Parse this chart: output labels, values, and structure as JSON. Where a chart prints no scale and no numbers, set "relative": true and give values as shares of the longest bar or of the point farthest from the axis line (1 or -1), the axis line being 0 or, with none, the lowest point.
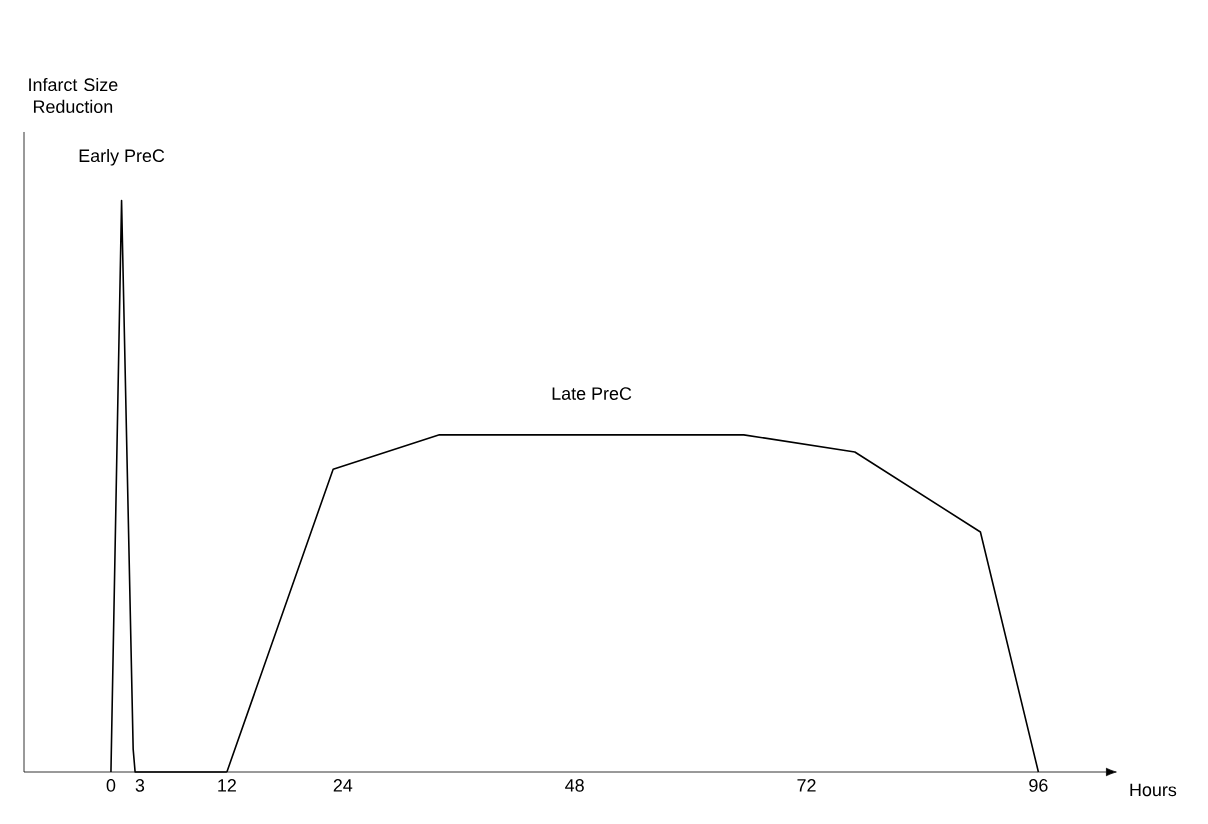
{
  "chart_data": {
    "type": "line",
    "relative": true,
    "tick_labels": "x",
    "xlabel": "Hours",
    "ylabel": "Infarct Size Reduction",
    "xlim": [
      -9,
      103
    ],
    "xticks": [
      0,
      3,
      12,
      24,
      48,
      72,
      96
    ],
    "series": [
      {
        "name": "Early PreC",
        "color": "#000000",
        "x": [
          0,
          1.1,
          2.3,
          2.5,
          12
        ],
        "values": [
          0,
          1,
          0.04,
          0,
          0
        ]
      },
      {
        "name": "Late PreC",
        "color": "#000000",
        "x": [
          12,
          23,
          34,
          65.5,
          77,
          90,
          96
        ],
        "values": [
          0,
          0.53,
          0.59,
          0.59,
          0.56,
          0.42,
          0
        ]
      }
    ]
  }
}
